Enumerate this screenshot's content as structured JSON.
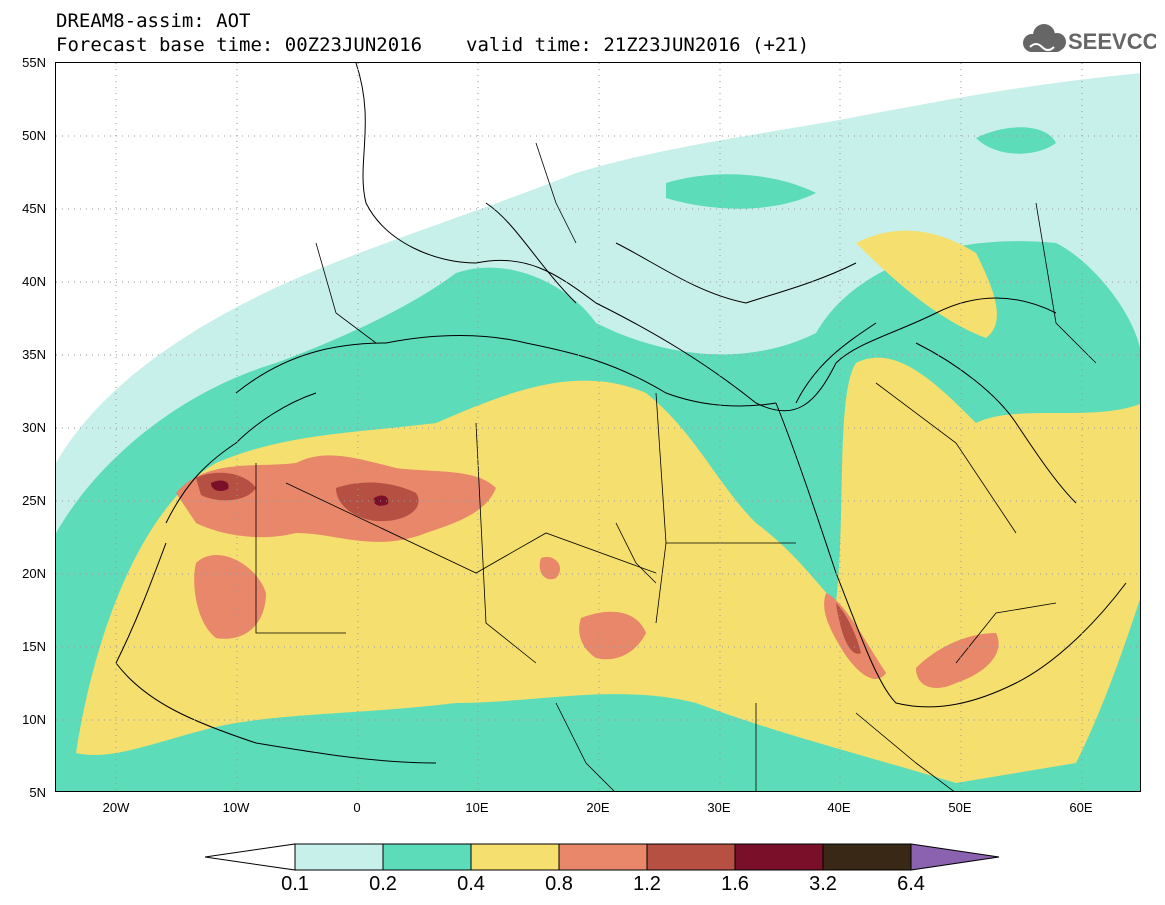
{
  "header": {
    "line1": "DREAM8-assim: AOT",
    "base_time": "Forecast base time: 00Z23JUN2016",
    "valid_time": "valid time: 21Z23JUN2016 (+21)",
    "logo_text": "SEEVCCC"
  },
  "map": {
    "lon_range": [
      -25,
      65
    ],
    "lat_range": [
      5,
      55
    ],
    "grid": "dotted",
    "lat_labels": [
      "55N",
      "50N",
      "45N",
      "40N",
      "35N",
      "30N",
      "25N",
      "20N",
      "15N",
      "10N",
      "5N"
    ],
    "lon_labels": [
      "20W",
      "10W",
      "0",
      "10E",
      "20E",
      "30E",
      "40E",
      "50E",
      "60E"
    ]
  },
  "legend": {
    "labels": [
      "0.1",
      "0.2",
      "0.4",
      "0.8",
      "1.2",
      "1.6",
      "3.2",
      "6.4"
    ],
    "colors": [
      "#c8f0ea",
      "#5cdcb9",
      "#f5df6e",
      "#e8876a",
      "#b65042",
      "#7a0f2a",
      "#3a2816",
      "#8a62b0"
    ],
    "low_color": "#ffffff"
  }
}
